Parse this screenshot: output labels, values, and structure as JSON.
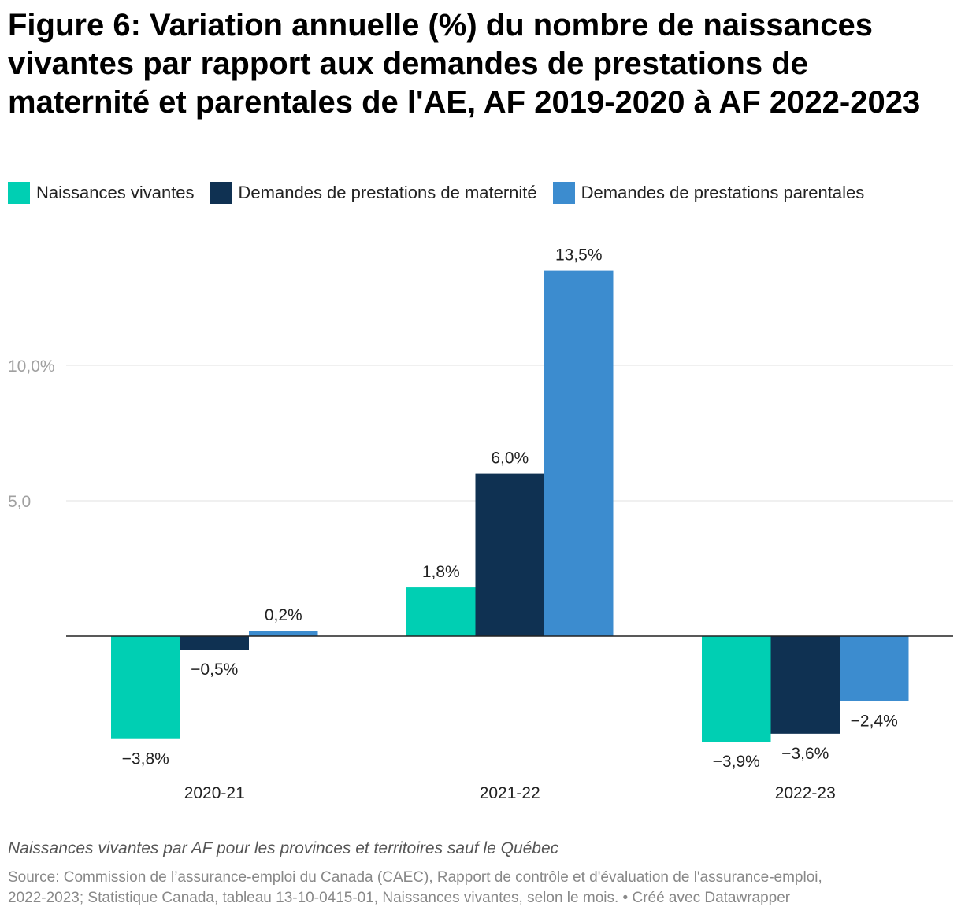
{
  "chart_data": {
    "type": "bar",
    "title": "Figure 6: Variation annuelle (%) du nombre de naissances vivantes par rapport aux demandes de prestations de maternité et parentales de l'AE, AF 2019-2020 à AF 2022-2023",
    "categories": [
      "2020-21",
      "2021-22",
      "2022-23"
    ],
    "series": [
      {
        "name": "Naissances vivantes",
        "color": "#00cfb3",
        "values": [
          -3.8,
          1.8,
          -3.9
        ],
        "labels": [
          "−3,8%",
          "1,8%",
          "−3,9%"
        ]
      },
      {
        "name": "Demandes de prestations de maternité",
        "color": "#0f3152",
        "values": [
          -0.5,
          6.0,
          -3.6
        ],
        "labels": [
          "−0,5%",
          "6,0%",
          "−3,6%"
        ]
      },
      {
        "name": "Demandes de prestations parentales",
        "color": "#3c8ccf",
        "values": [
          0.2,
          13.5,
          -2.4
        ],
        "labels": [
          "0,2%",
          "13,5%",
          "−2,4%"
        ]
      }
    ],
    "yticks": [
      {
        "value": 5,
        "label": "5,0"
      },
      {
        "value": 10,
        "label": "10,0%"
      }
    ],
    "ylim": [
      -4.5,
      14.5
    ],
    "xlabel": "",
    "ylabel": "",
    "grid": true,
    "legend": "top-left"
  },
  "notes": "Naissances vivantes par AF pour les provinces et territoires sauf le Québec",
  "source_line1": "Source: Commission de l’assurance-emploi du Canada (CAEC), Rapport de contrôle et d'évaluation de l'assurance-emploi,",
  "source_line2": "2022-2023; Statistique Canada, tableau 13-10-0415-01, Naissances vivantes, selon le mois. • Créé avec Datawrapper"
}
